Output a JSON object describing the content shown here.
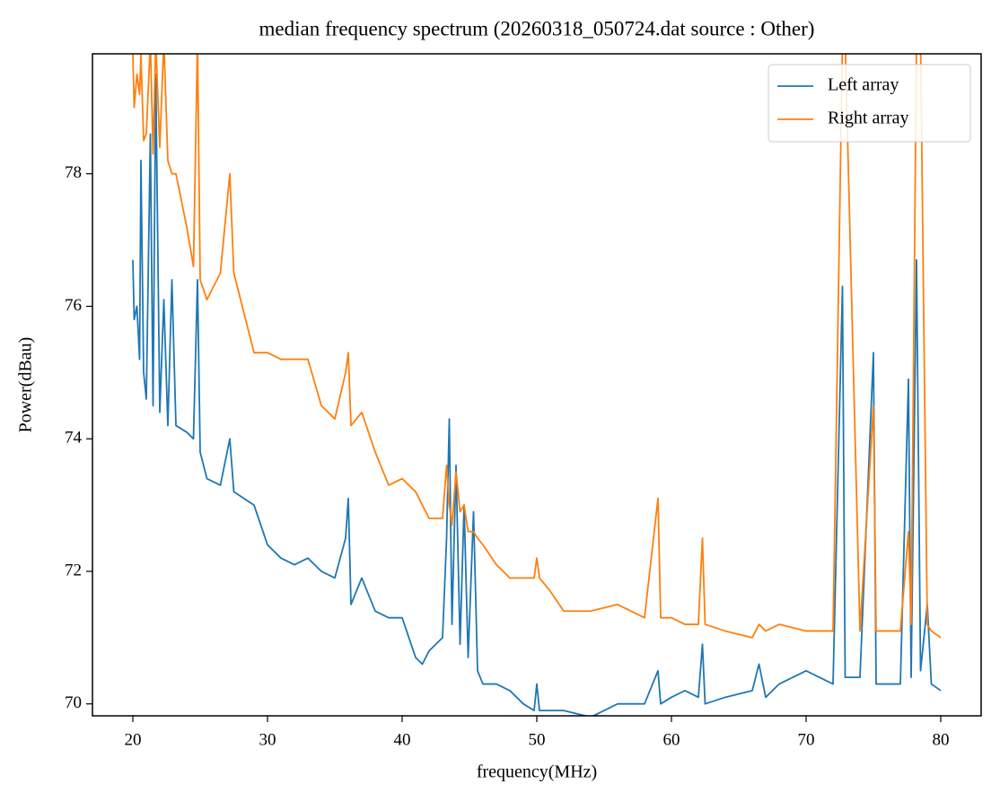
{
  "chart_data": {
    "type": "line",
    "title": "median frequency spectrum (20260318_050724.dat source : Other)",
    "x_label": "frequency(MHz)",
    "y_label": "Power(dBau)",
    "x": [
      20,
      20.1,
      20.3,
      20.5,
      20.6,
      20.8,
      21,
      21.3,
      21.5,
      21.7,
      22,
      22.3,
      22.6,
      22.9,
      23.2,
      24,
      24.5,
      24.8,
      25,
      25.5,
      26.5,
      27.2,
      27.5,
      29,
      30,
      31,
      32,
      33,
      34,
      35,
      35.8,
      36,
      36.2,
      37,
      38,
      39,
      40,
      41,
      41.5,
      42,
      43,
      43.3,
      43.5,
      43.7,
      44,
      44.3,
      44.6,
      44.9,
      45.3,
      45.6,
      46,
      47,
      48,
      49,
      49.8,
      50,
      50.2,
      51,
      52,
      54,
      56,
      58,
      59,
      59.2,
      60,
      61,
      62,
      62.3,
      62.5,
      64,
      66,
      66.5,
      67,
      68,
      70,
      72,
      72.7,
      72.9,
      74,
      75,
      75.2,
      76,
      77,
      77.6,
      77.8,
      78.2,
      78.5,
      79,
      79.3,
      80
    ],
    "series": [
      {
        "name": "Left array",
        "color": "#1f77b4",
        "values": [
          76.7,
          75.8,
          76.0,
          75.2,
          78.2,
          75.0,
          74.6,
          78.6,
          74.5,
          79.5,
          74.4,
          76.1,
          74.2,
          76.4,
          74.2,
          74.1,
          74.0,
          76.4,
          73.8,
          73.4,
          73.3,
          74.0,
          73.2,
          73.0,
          72.4,
          72.2,
          72.1,
          72.2,
          72.0,
          71.9,
          72.5,
          73.1,
          71.5,
          71.9,
          71.4,
          71.3,
          71.3,
          70.7,
          70.6,
          70.8,
          71.0,
          72.5,
          74.3,
          71.2,
          73.6,
          70.9,
          73.0,
          70.7,
          72.9,
          70.5,
          70.3,
          70.3,
          70.2,
          70.0,
          69.9,
          70.3,
          69.9,
          69.9,
          69.9,
          69.8,
          70.0,
          70.0,
          70.5,
          70.0,
          70.1,
          70.2,
          70.1,
          70.9,
          70.0,
          70.1,
          70.2,
          70.6,
          70.1,
          70.3,
          70.5,
          70.3,
          76.3,
          70.4,
          70.4,
          75.3,
          70.3,
          70.3,
          70.3,
          74.9,
          70.4,
          76.7,
          70.5,
          71.5,
          70.3,
          70.2
        ]
      },
      {
        "name": "Right array",
        "color": "#ff7f0e",
        "values": [
          79.8,
          79.0,
          79.5,
          79.2,
          79.8,
          78.5,
          78.6,
          80,
          78.3,
          80,
          78.4,
          80,
          78.2,
          78.0,
          78.0,
          77.2,
          76.6,
          80,
          76.4,
          76.1,
          76.5,
          78.0,
          76.5,
          75.3,
          75.3,
          75.2,
          75.2,
          75.2,
          74.5,
          74.3,
          75.0,
          75.3,
          74.2,
          74.4,
          73.8,
          73.3,
          73.4,
          73.2,
          73.0,
          72.8,
          72.8,
          73.6,
          73.0,
          72.7,
          73.5,
          72.9,
          73.0,
          72.6,
          72.6,
          72.5,
          72.4,
          72.1,
          71.9,
          71.9,
          71.9,
          72.2,
          71.9,
          71.7,
          71.4,
          71.4,
          71.5,
          71.3,
          73.1,
          71.3,
          71.3,
          71.2,
          71.2,
          72.5,
          71.2,
          71.1,
          71.0,
          71.2,
          71.1,
          71.2,
          71.1,
          71.1,
          80,
          80,
          71.1,
          74.5,
          71.1,
          71.1,
          71.1,
          72.6,
          71.2,
          80,
          80,
          71.2,
          71.1,
          71.0
        ]
      }
    ],
    "xlim": [
      17,
      83
    ],
    "ylim": [
      69.82,
      79.81
    ],
    "xticks": [
      20,
      30,
      40,
      50,
      60,
      70,
      80
    ],
    "yticks": [
      70,
      72,
      74,
      76,
      78
    ],
    "legend": "upper right"
  }
}
